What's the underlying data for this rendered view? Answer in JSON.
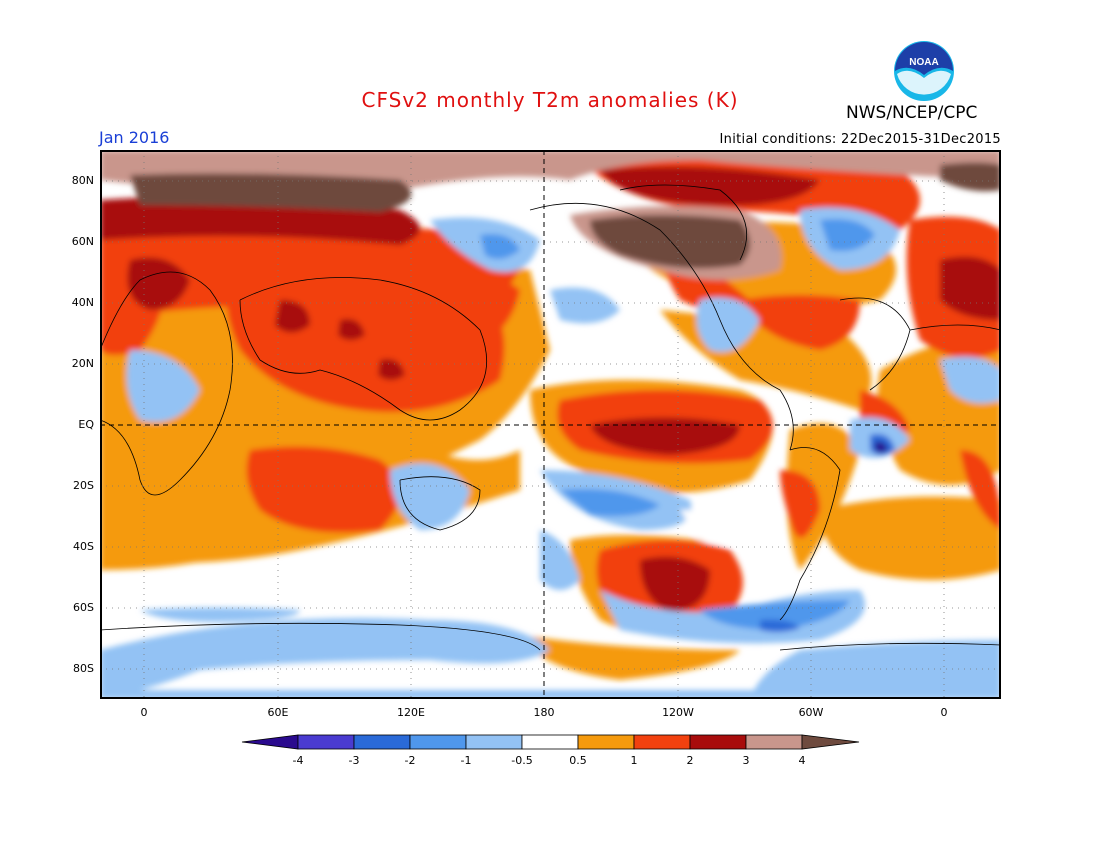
{
  "header": {
    "title": "CFSv2 monthly T2m anomalies (K)",
    "agency": "NWS/NCEP/CPC",
    "period": "Jan 2016",
    "initial_conditions": "Initial conditions: 22Dec2015-31Dec2015",
    "logo_text": "NOAA"
  },
  "map": {
    "lat_labels": [
      "80N",
      "60N",
      "40N",
      "20N",
      "EQ",
      "20S",
      "40S",
      "60S",
      "80S"
    ],
    "lon_labels": [
      "0",
      "60E",
      "120E",
      "180",
      "120W",
      "60W",
      "0"
    ],
    "projection": "cylindrical equidistant, centered near 180",
    "variable": "2-metre temperature anomaly"
  },
  "colorbar": {
    "tick_labels": [
      "-4",
      "-3",
      "-2",
      "-1",
      "-0.5",
      "0.5",
      "1",
      "2",
      "3",
      "4"
    ],
    "colors": [
      "#2a0a8e",
      "#4a3bd0",
      "#2a6ad8",
      "#4f97ec",
      "#93c2f4",
      "#ffffff",
      "#f59a0d",
      "#f2410f",
      "#a80c0c",
      "#c9968c",
      "#6e4a3e"
    ],
    "units": "K"
  }
}
